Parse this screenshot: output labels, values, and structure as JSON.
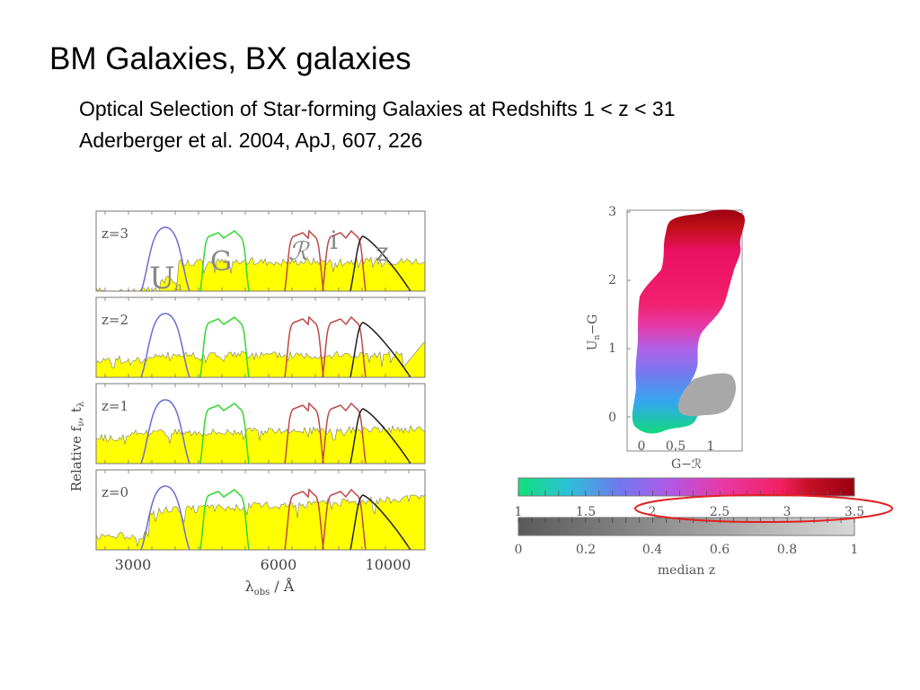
{
  "slide": {
    "title": "BM Galaxies, BX galaxies",
    "citation_title": "Optical Selection of Star-forming Galaxies at Redshifts 1 < z < 31",
    "citation_ref": "Aderberger et al. 2004, ApJ, 607, 226"
  },
  "left_figure": {
    "ylabel": "Relative f",
    "ylabel_sub1": "ν",
    "ylabel_sep": ", t",
    "ylabel_sub2": "λ",
    "xlabel_main": "λ",
    "xlabel_sub": "obs",
    "xlabel_unit": " / Å",
    "x_ticks": [
      "3000",
      "6000",
      "10000"
    ],
    "panels": [
      "z=3",
      "z=2",
      "z=1",
      "z=0"
    ],
    "filter_labels": {
      "u": "U",
      "u_sub": "n",
      "g": "G",
      "r": "ℛ",
      "i": "i",
      "z": "z"
    },
    "filter_colors": {
      "Un": "#6b6bd0",
      "G": "#33d633",
      "R": "#c04848",
      "i": "#c04848",
      "z": "#222222"
    }
  },
  "right_figure": {
    "ylabel_main": "U",
    "ylabel_sub": "n",
    "ylabel_rest": "−G",
    "xlabel": "G−ℛ",
    "y_ticks": [
      "3",
      "2",
      "1",
      "0"
    ],
    "x_ticks": [
      "0",
      "0.5",
      "1"
    ],
    "colorbar_ticks": [
      "1",
      "1.5",
      "2",
      "2.5",
      "3",
      "3.5"
    ],
    "graybar_ticks": [
      "0",
      "0.2",
      "0.4",
      "0.6",
      "0.8",
      "1"
    ],
    "colorbar_label": "median z"
  },
  "colors": {
    "spectrum_fill": "#ffff00",
    "highlight_ellipse": "#e02020"
  }
}
